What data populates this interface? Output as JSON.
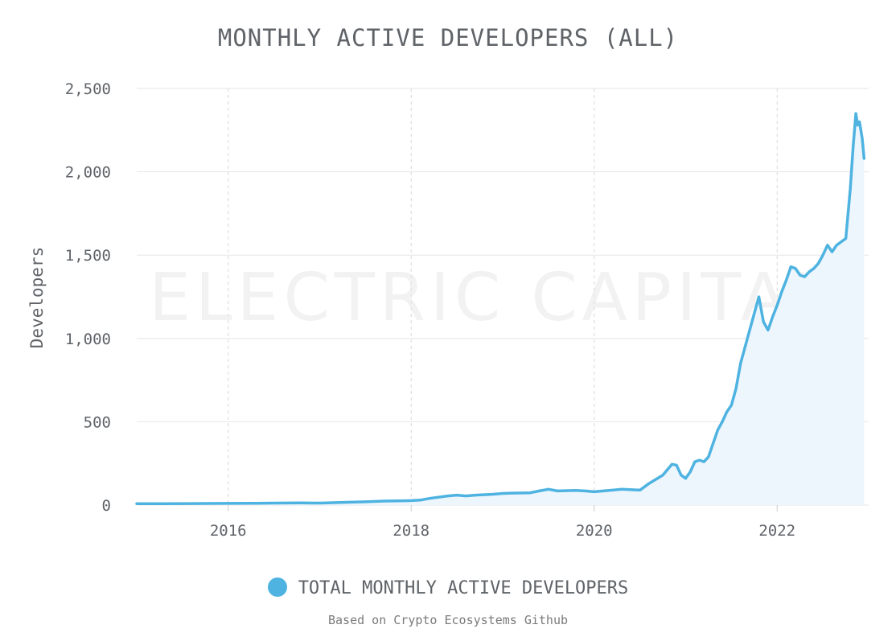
{
  "chart_data": {
    "type": "area",
    "title": "MONTHLY ACTIVE DEVELOPERS (ALL)",
    "ylabel": "Developers",
    "xlabel": "",
    "ylim": [
      0,
      2500
    ],
    "xlim": [
      2015.0,
      2023.0
    ],
    "y_ticks": [
      0,
      500,
      1000,
      1500,
      2000,
      2500
    ],
    "y_tick_labels": [
      "0",
      "500",
      "1,000",
      "1,500",
      "2,000",
      "2,500"
    ],
    "x_ticks": [
      2016,
      2018,
      2020,
      2022
    ],
    "x_tick_labels": [
      "2016",
      "2018",
      "2020",
      "2022"
    ],
    "grid": true,
    "legend_position": "bottom",
    "series": [
      {
        "name": "TOTAL MONTHLY ACTIVE DEVELOPERS",
        "color": "#4eb3e1",
        "fill": "#eef6fd",
        "x": [
          2015.0,
          2015.3,
          2015.6,
          2016.0,
          2016.3,
          2016.5,
          2016.8,
          2017.0,
          2017.3,
          2017.5,
          2017.7,
          2018.0,
          2018.1,
          2018.2,
          2018.4,
          2018.5,
          2018.6,
          2018.7,
          2018.9,
          2019.0,
          2019.1,
          2019.3,
          2019.4,
          2019.5,
          2019.6,
          2019.8,
          2019.9,
          2020.0,
          2020.2,
          2020.3,
          2020.5,
          2020.6,
          2020.75,
          2020.85,
          2020.9,
          2020.95,
          2021.0,
          2021.05,
          2021.1,
          2021.15,
          2021.2,
          2021.25,
          2021.3,
          2021.35,
          2021.4,
          2021.45,
          2021.5,
          2021.55,
          2021.6,
          2021.65,
          2021.7,
          2021.75,
          2021.8,
          2021.85,
          2021.9,
          2021.95,
          2022.0,
          2022.05,
          2022.1,
          2022.15,
          2022.2,
          2022.25,
          2022.3,
          2022.35,
          2022.4,
          2022.45,
          2022.5,
          2022.55,
          2022.6,
          2022.65,
          2022.7,
          2022.75,
          2022.8,
          2022.83,
          2022.86,
          2022.88,
          2022.9,
          2022.93,
          2022.95
        ],
        "values": [
          8,
          8,
          9,
          10,
          11,
          12,
          13,
          12,
          17,
          20,
          24,
          27,
          30,
          40,
          55,
          60,
          55,
          60,
          65,
          70,
          72,
          74,
          85,
          95,
          85,
          88,
          85,
          80,
          90,
          95,
          90,
          130,
          180,
          245,
          240,
          180,
          160,
          200,
          260,
          270,
          260,
          290,
          370,
          450,
          500,
          560,
          600,
          700,
          850,
          950,
          1050,
          1150,
          1250,
          1100,
          1050,
          1130,
          1200,
          1280,
          1350,
          1430,
          1420,
          1380,
          1370,
          1400,
          1420,
          1450,
          1500,
          1560,
          1520,
          1560,
          1580,
          1600,
          1900,
          2150,
          2350,
          2280,
          2300,
          2200,
          2080
        ]
      }
    ],
    "watermark": "ELECTRIC CAPITAL"
  },
  "source_note": "Based on Crypto Ecosystems Github"
}
